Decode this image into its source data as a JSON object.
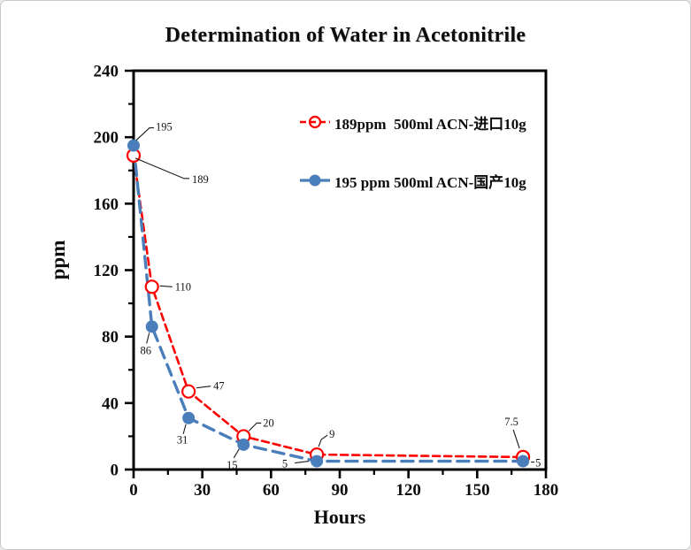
{
  "window": {
    "background": "#ffffff",
    "frame_border": "#c9c9c9"
  },
  "chart_data": {
    "type": "line",
    "title": "Determination of Water in Acetonitrile",
    "xlabel": "Hours",
    "ylabel": "ppm",
    "xlim": [
      0,
      180
    ],
    "ylim": [
      0,
      240
    ],
    "x_major_ticks": [
      0,
      30,
      60,
      90,
      120,
      150,
      180
    ],
    "x_minor_step": 15,
    "y_major_ticks": [
      0,
      40,
      80,
      120,
      160,
      200,
      240
    ],
    "y_minor_step": 20,
    "grid": false,
    "legend_position": "inside-upper-right",
    "axis_color": "#000000",
    "x": [
      0,
      8,
      24,
      48,
      80,
      170
    ],
    "series": [
      {
        "name": "189ppm  500ml ACN-进口10g",
        "color": "#fe0000",
        "marker": "open-circle",
        "line_style": "dashed",
        "values": [
          189,
          110,
          47,
          20,
          9,
          7.5
        ]
      },
      {
        "name": "195 ppm 500ml ACN-国产10g",
        "color": "#4a7ebb",
        "marker": "filled-circle",
        "line_style": "dashed",
        "values": [
          195,
          86,
          31,
          15,
          5,
          5
        ]
      }
    ],
    "point_labels": [
      [
        "189",
        "110",
        "47",
        "20",
        "9",
        "7.5"
      ],
      [
        "195",
        "86",
        "31",
        "15",
        "5",
        "5"
      ]
    ]
  }
}
